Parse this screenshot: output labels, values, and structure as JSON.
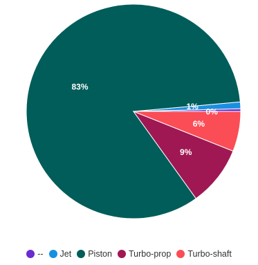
{
  "chart_data": {
    "type": "pie",
    "slices": [
      {
        "label": "--",
        "value": 0.4,
        "display": "0%",
        "color": "#6b2bd1"
      },
      {
        "label": "Jet",
        "value": 1.0,
        "display": "1%",
        "color": "#1a8fe0"
      },
      {
        "label": "Piston",
        "value": 83.0,
        "display": "83%",
        "color": "#005d5a"
      },
      {
        "label": "Turbo-prop",
        "value": 9.0,
        "display": "9%",
        "color": "#9f1853"
      },
      {
        "label": "Turbo-shaft",
        "value": 6.0,
        "display": "6%",
        "color": "#fa4d56"
      }
    ],
    "legend_position": "bottom"
  }
}
